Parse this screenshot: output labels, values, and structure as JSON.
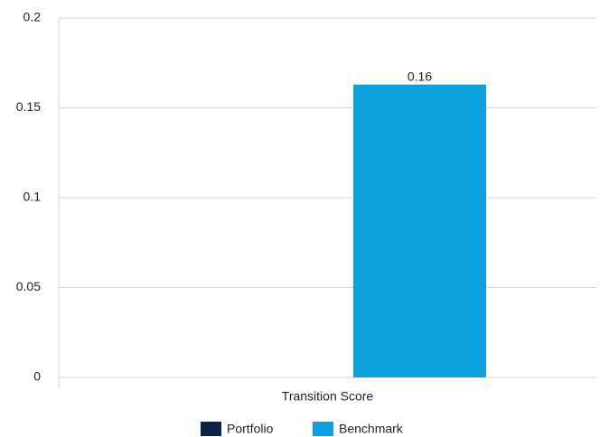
{
  "chart_data": {
    "type": "bar",
    "categories": [
      "Transition Score"
    ],
    "series": [
      {
        "name": "Portfolio",
        "color": "#0b2345",
        "values": [
          null
        ]
      },
      {
        "name": "Benchmark",
        "color": "#0fa0e0",
        "values": [
          0.163
        ],
        "value_labels": [
          "0.16"
        ]
      }
    ],
    "ylim": [
      0,
      0.2
    ],
    "yticks": [
      0,
      0.05,
      0.1,
      0.15,
      0.2
    ],
    "grid": true,
    "legend": "bottom"
  }
}
